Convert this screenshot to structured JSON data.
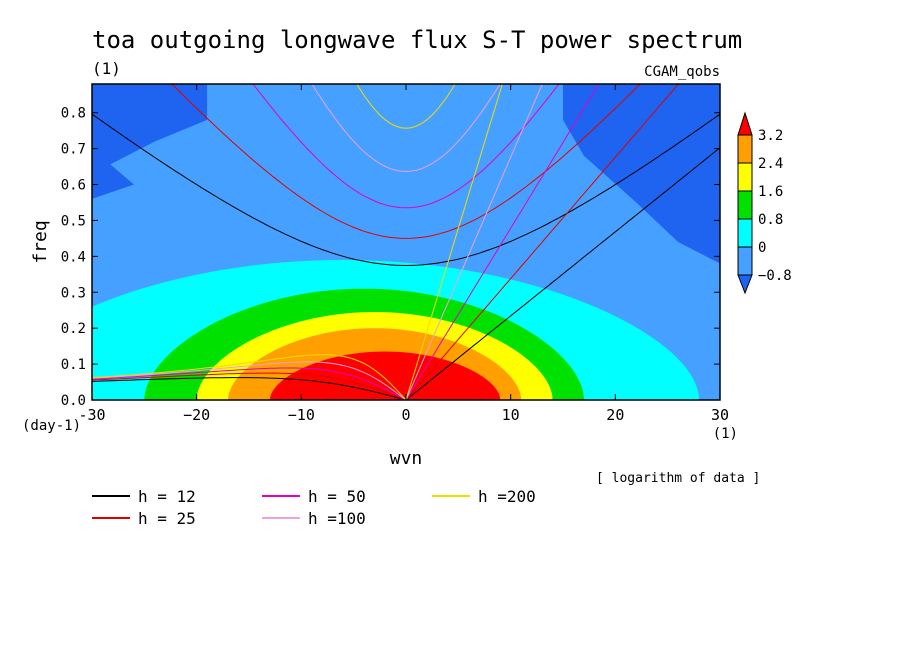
{
  "chart_data": {
    "type": "heatmap",
    "title": "toa outgoing longwave flux S-T power spectrum",
    "title_unit": "(1)",
    "dataset_label": "CGAM_qobs",
    "xlabel": "wvn",
    "ylabel": "freq",
    "x_unit": "(1)",
    "y_unit": "(day-1)",
    "xlim": [
      -30,
      30
    ],
    "ylim": [
      0,
      0.88
    ],
    "x_ticks": [
      -30,
      -20,
      -10,
      0,
      10,
      20,
      30
    ],
    "x_tick_labels": [
      "-30",
      "−20",
      "−10",
      "0",
      "10",
      "20",
      "30"
    ],
    "y_ticks": [
      0.0,
      0.1,
      0.2,
      0.3,
      0.4,
      0.5,
      0.6,
      0.7,
      0.8
    ],
    "y_tick_labels": [
      "0.0",
      "0.1",
      "0.2",
      "0.3",
      "0.4",
      "0.5",
      "0.6",
      "0.7",
      "0.8"
    ],
    "note": "[ logarithm of data ]",
    "colorbar": {
      "levels": [
        -0.8,
        0,
        0.8,
        1.6,
        2.4,
        3.2
      ],
      "labels": [
        "−0.8",
        "0",
        "0.8",
        "1.6",
        "2.4",
        "3.2"
      ],
      "colors": [
        "#1e64f0",
        "#46a0ff",
        "#00ffff",
        "#00e100",
        "#ffff00",
        "#ffa000",
        "#ff0000"
      ]
    },
    "dispersion_curves": [
      {
        "label": "h = 12",
        "h": 12,
        "color": "#000000"
      },
      {
        "label": "h = 25",
        "h": 25,
        "color": "#e00000"
      },
      {
        "label": "h = 50",
        "h": 50,
        "color": "#e000c8"
      },
      {
        "label": "h =100",
        "h": 100,
        "color": "#f0a0dc"
      },
      {
        "label": "h =200",
        "h": 200,
        "color": "#f0dc00"
      }
    ]
  }
}
